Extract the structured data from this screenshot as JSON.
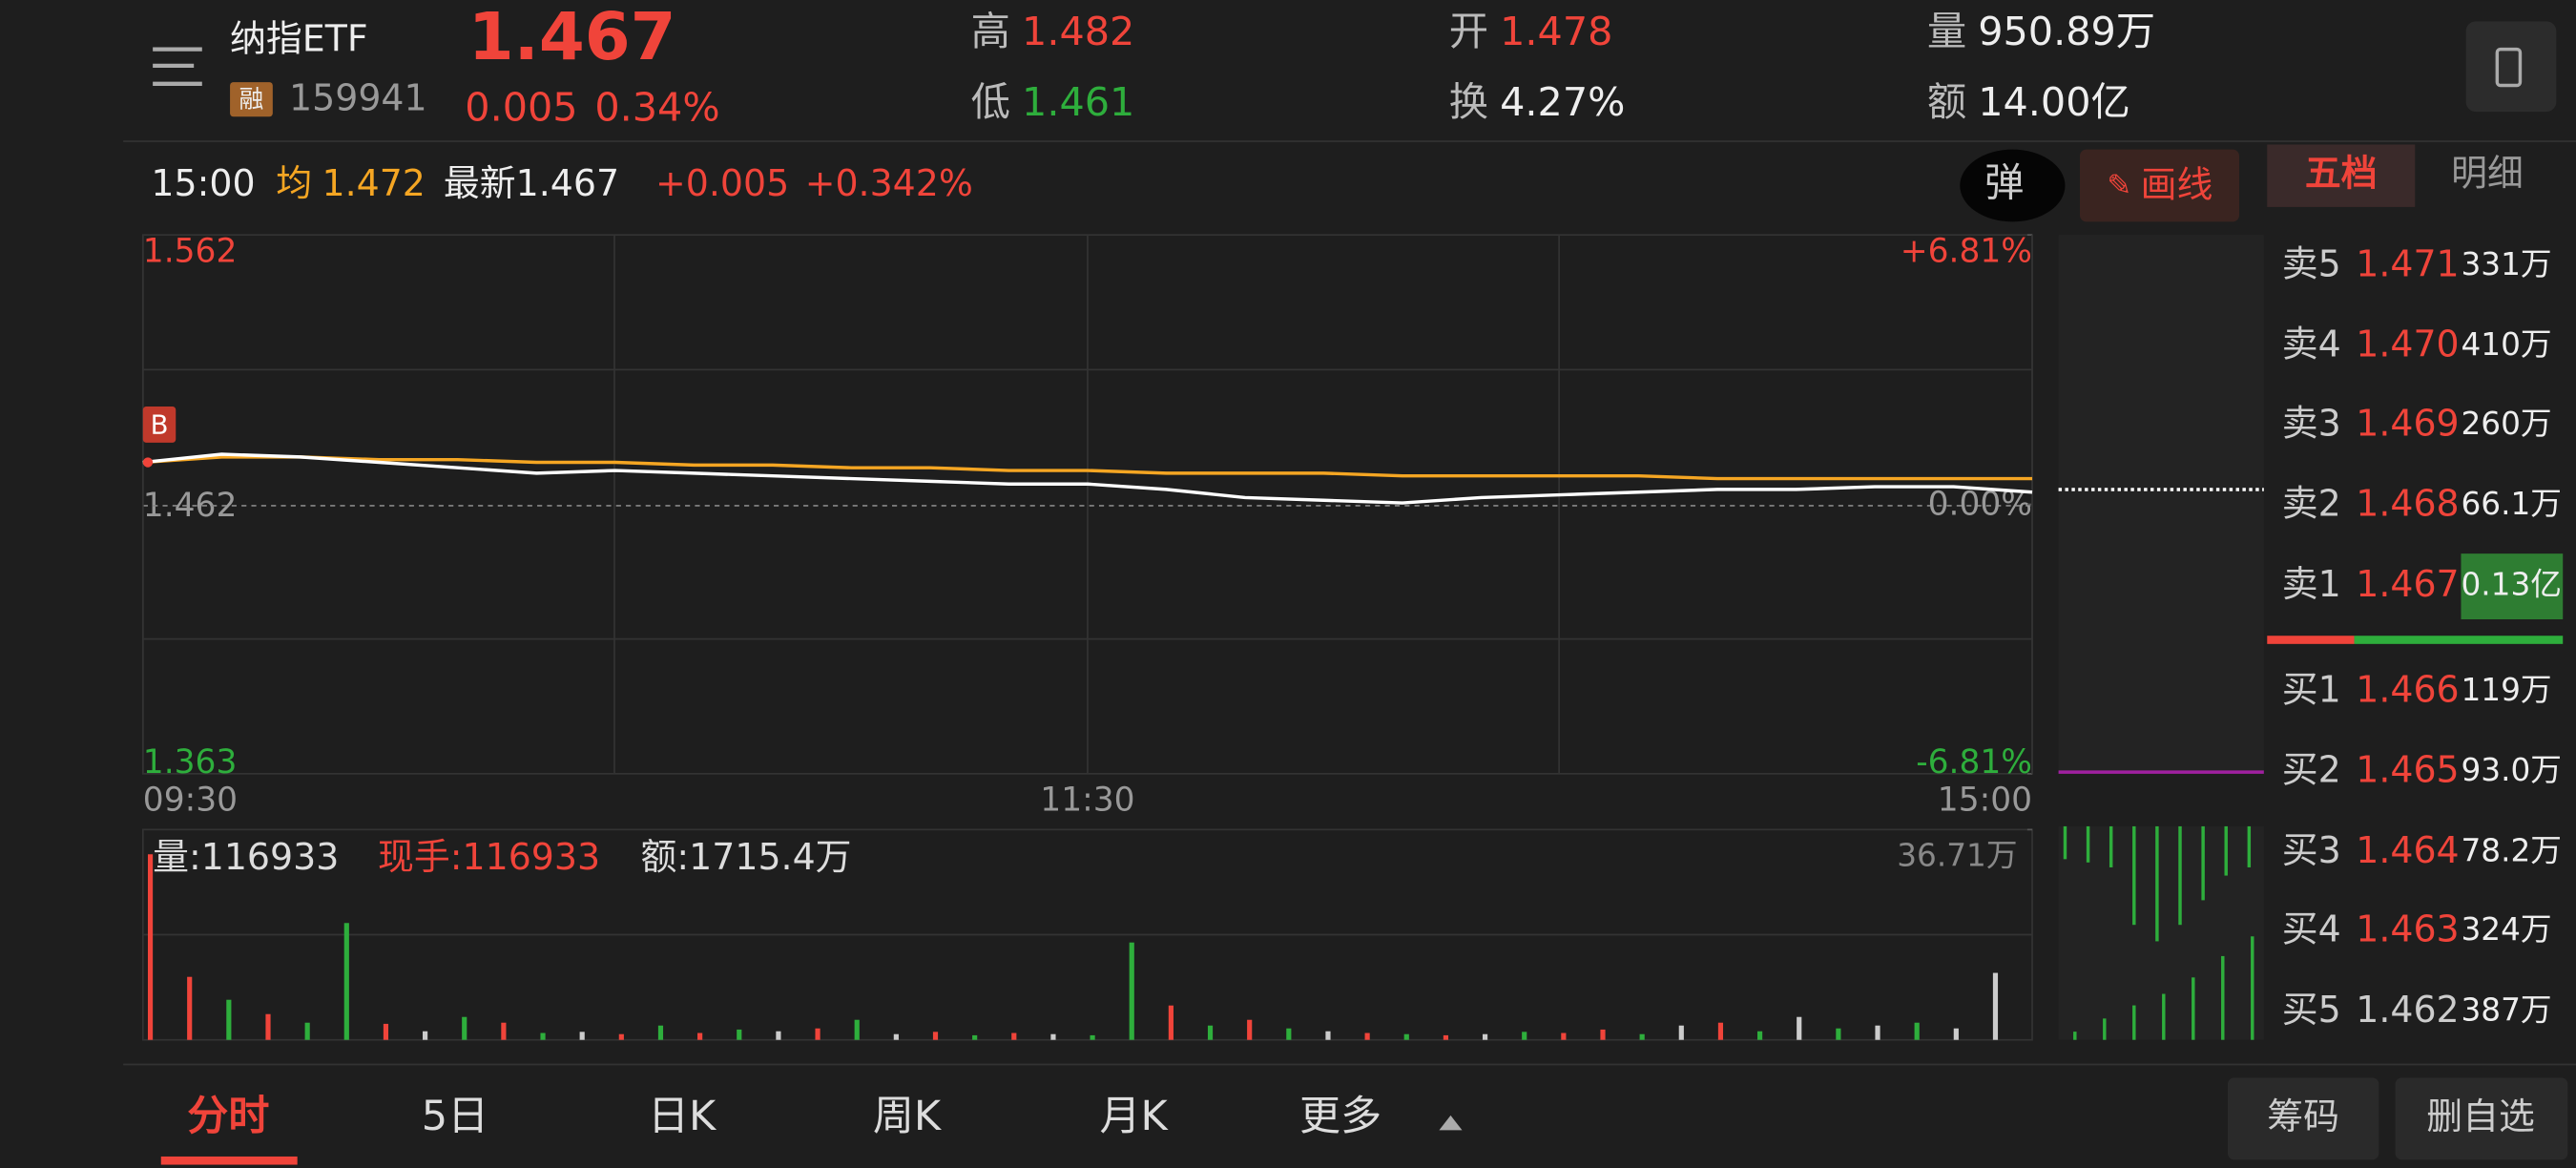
{
  "header": {
    "name": "纳指ETF",
    "tag": "融",
    "code": "159941",
    "price": "1.467",
    "change": "0.005",
    "change_pct": "0.34%",
    "stats": [
      {
        "label": "高",
        "value": "1.482"
      },
      {
        "label": "低",
        "value": "1.461"
      },
      {
        "label": "开",
        "value": "1.478"
      },
      {
        "label": "换",
        "value": "4.27%"
      },
      {
        "label": "量",
        "value": "950.89万"
      },
      {
        "label": "额",
        "value": "14.00亿"
      }
    ]
  },
  "info_bar": {
    "time": "15:00",
    "avg_label": "均",
    "avg": "1.472",
    "latest": "最新1.467",
    "change": "+0.005",
    "change_pct": "+0.342%",
    "popup_button": "弹",
    "draw_button": "画线"
  },
  "side_tabs": [
    "五档",
    "明细"
  ],
  "chart_data": [
    {
      "type": "line",
      "x": [
        0,
        10,
        20,
        30,
        40,
        50,
        60,
        70,
        80,
        90,
        100,
        110,
        120,
        130,
        140,
        150,
        160,
        170,
        180,
        190,
        200,
        210,
        220,
        230,
        240
      ],
      "series": [
        {
          "color": "#ffffff",
          "values": [
            1.478,
            1.481,
            1.48,
            1.478,
            1.476,
            1.474,
            1.475,
            1.474,
            1.473,
            1.472,
            1.471,
            1.47,
            1.47,
            1.468,
            1.465,
            1.464,
            1.463,
            1.465,
            1.466,
            1.467,
            1.468,
            1.468,
            1.469,
            1.469,
            1.467
          ]
        },
        {
          "color": "#f5a623",
          "values": [
            1.478,
            1.48,
            1.48,
            1.479,
            1.479,
            1.478,
            1.478,
            1.477,
            1.477,
            1.476,
            1.476,
            1.475,
            1.475,
            1.474,
            1.474,
            1.474,
            1.473,
            1.473,
            1.473,
            1.473,
            1.472,
            1.472,
            1.472,
            1.472,
            1.472
          ]
        }
      ],
      "xlim": [
        0,
        240
      ],
      "xticks": [
        {
          "value": 0,
          "label": "09:30"
        },
        {
          "value": 120,
          "label": "11:30"
        },
        {
          "value": 240,
          "label": "15:00"
        }
      ],
      "ylim": [
        1.363,
        1.562
      ],
      "yticks": [
        1.562,
        1.462,
        1.363
      ],
      "y2lim": [
        -6.81,
        6.81
      ],
      "y2ticks": [
        {
          "value": 6.81,
          "label": "+6.81%"
        },
        {
          "value": 0,
          "label": "0.00%"
        },
        {
          "value": -6.81,
          "label": "-6.81%"
        }
      ],
      "annotations": [
        {
          "text": "B",
          "x": 0,
          "y": 1.478
        }
      ]
    },
    {
      "type": "bar",
      "x": [
        0,
        5,
        10,
        15,
        20,
        25,
        30,
        35,
        40,
        45,
        50,
        55,
        60,
        65,
        70,
        75,
        80,
        85,
        90,
        95,
        100,
        105,
        110,
        115,
        120,
        125,
        130,
        135,
        140,
        145,
        150,
        155,
        160,
        165,
        170,
        175,
        180,
        185,
        190,
        195,
        200,
        205,
        210,
        215,
        220,
        225,
        230,
        235
      ],
      "values": [
        324000,
        110000,
        70000,
        45000,
        30000,
        204000,
        28000,
        15000,
        40000,
        30000,
        12000,
        14000,
        10000,
        25000,
        12000,
        18000,
        15000,
        20000,
        35000,
        10000,
        14000,
        8000,
        12000,
        10000,
        8000,
        170000,
        60000,
        25000,
        35000,
        20000,
        15000,
        12000,
        10000,
        8000,
        10000,
        14000,
        12000,
        18000,
        10000,
        25000,
        30000,
        15000,
        40000,
        20000,
        25000,
        30000,
        20000,
        116933
      ],
      "colors": [
        "#f0443a",
        "#f0443a",
        "#2eae3c",
        "#f0443a",
        "#2eae3c",
        "#2eae3c",
        "#f0443a",
        "#cccccc",
        "#2eae3c",
        "#f0443a",
        "#2eae3c",
        "#cccccc",
        "#f0443a",
        "#2eae3c",
        "#f0443a",
        "#2eae3c",
        "#cccccc",
        "#f0443a",
        "#2eae3c",
        "#cccccc",
        "#f0443a",
        "#2eae3c",
        "#f0443a",
        "#cccccc",
        "#2eae3c",
        "#2eae3c",
        "#f0443a",
        "#2eae3c",
        "#f0443a",
        "#2eae3c",
        "#cccccc",
        "#f0443a",
        "#2eae3c",
        "#f0443a",
        "#cccccc",
        "#2eae3c",
        "#f0443a",
        "#f0443a",
        "#2eae3c",
        "#cccccc",
        "#f0443a",
        "#2eae3c",
        "#cccccc",
        "#2eae3c",
        "#cccccc",
        "#2eae3c",
        "#cccccc",
        "#cccccc"
      ],
      "xlim": [
        0,
        240
      ],
      "ylim": [
        0,
        367100
      ],
      "yticks": [
        {
          "value": 367100,
          "label": "36.71万"
        }
      ],
      "labels": [
        "量:116933",
        "现手:116933",
        "额:1715.4万"
      ]
    }
  ],
  "order_book": {
    "asks": [
      {
        "label": "卖5",
        "price": "1.471",
        "volume": "331万"
      },
      {
        "label": "卖4",
        "price": "1.470",
        "volume": "410万"
      },
      {
        "label": "卖3",
        "price": "1.469",
        "volume": "260万"
      },
      {
        "label": "卖2",
        "price": "1.468",
        "volume": "66.1万"
      },
      {
        "label": "卖1",
        "price": "1.467",
        "volume": "0.13亿"
      }
    ],
    "bids": [
      {
        "label": "买1",
        "price": "1.466",
        "volume": "119万"
      },
      {
        "label": "买2",
        "price": "1.465",
        "volume": "93.0万"
      },
      {
        "label": "买3",
        "price": "1.464",
        "volume": "78.2万"
      },
      {
        "label": "买4",
        "price": "1.463",
        "volume": "324万"
      },
      {
        "label": "买5",
        "price": "1.462",
        "volume": "387万"
      }
    ]
  },
  "bottom_tabs": [
    "分时",
    "5日",
    "日K",
    "周K",
    "月K",
    "更多"
  ],
  "bottom_buttons": [
    "筹码",
    "删自选"
  ]
}
